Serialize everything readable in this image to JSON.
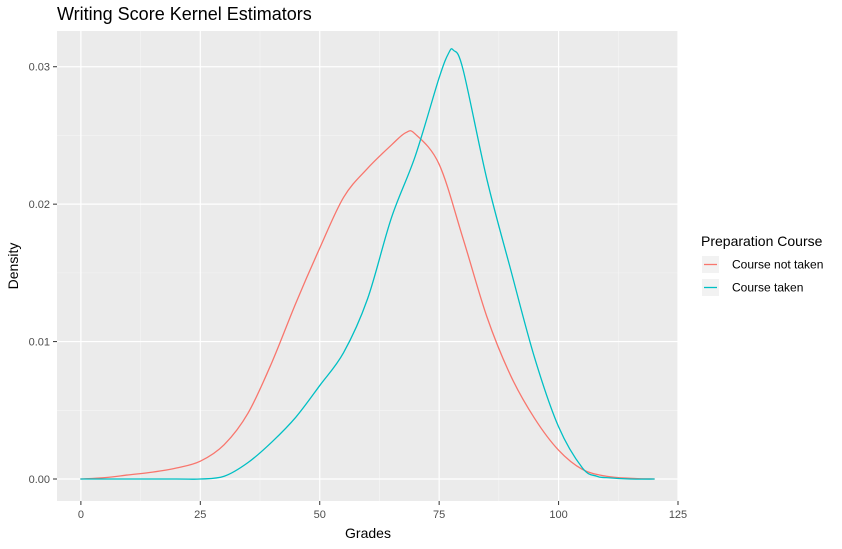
{
  "chart_data": {
    "type": "line",
    "title": "Writing Score Kernel Estimators",
    "xlabel": "Grades",
    "ylabel": "Density",
    "xlim": [
      -5,
      125
    ],
    "ylim": [
      -0.0016,
      0.0326
    ],
    "x_ticks": [
      0,
      25,
      50,
      75,
      100,
      125
    ],
    "x_tick_labels": [
      "0",
      "25",
      "50",
      "75",
      "100",
      "125"
    ],
    "y_ticks": [
      0,
      0.01,
      0.02,
      0.03
    ],
    "y_tick_labels": [
      "0.00",
      "0.01",
      "0.02",
      "0.03"
    ],
    "grid": true,
    "legend": {
      "title": "Preparation Course",
      "position": "right"
    },
    "series": [
      {
        "name": "Course not taken",
        "color": "#F8766D",
        "x": [
          0,
          5,
          10,
          15,
          20,
          25,
          30,
          35,
          40,
          45,
          50,
          55,
          60,
          65,
          68,
          70,
          75,
          80,
          85,
          90,
          95,
          100,
          105,
          110,
          115,
          120
        ],
        "y": [
          0,
          0.0001,
          0.0003,
          0.0005,
          0.0008,
          0.0013,
          0.0025,
          0.0048,
          0.0085,
          0.0128,
          0.0168,
          0.0205,
          0.0226,
          0.0243,
          0.0252,
          0.0251,
          0.0229,
          0.0175,
          0.0118,
          0.0075,
          0.0044,
          0.0021,
          0.0007,
          0.0002,
          5e-05,
          0
        ]
      },
      {
        "name": "Course taken",
        "color": "#00BFC4",
        "x": [
          0,
          20,
          25,
          30,
          35,
          40,
          45,
          50,
          55,
          60,
          65,
          70,
          75,
          77,
          78,
          80,
          85,
          90,
          95,
          100,
          105,
          108,
          110,
          115,
          120
        ],
        "y": [
          0,
          0,
          0,
          0.0002,
          0.0012,
          0.0027,
          0.0045,
          0.0068,
          0.0092,
          0.0131,
          0.019,
          0.0235,
          0.0292,
          0.031,
          0.0312,
          0.0298,
          0.0218,
          0.0152,
          0.0088,
          0.0038,
          0.0008,
          0.0002,
          0.0001,
          0,
          0
        ]
      }
    ]
  }
}
